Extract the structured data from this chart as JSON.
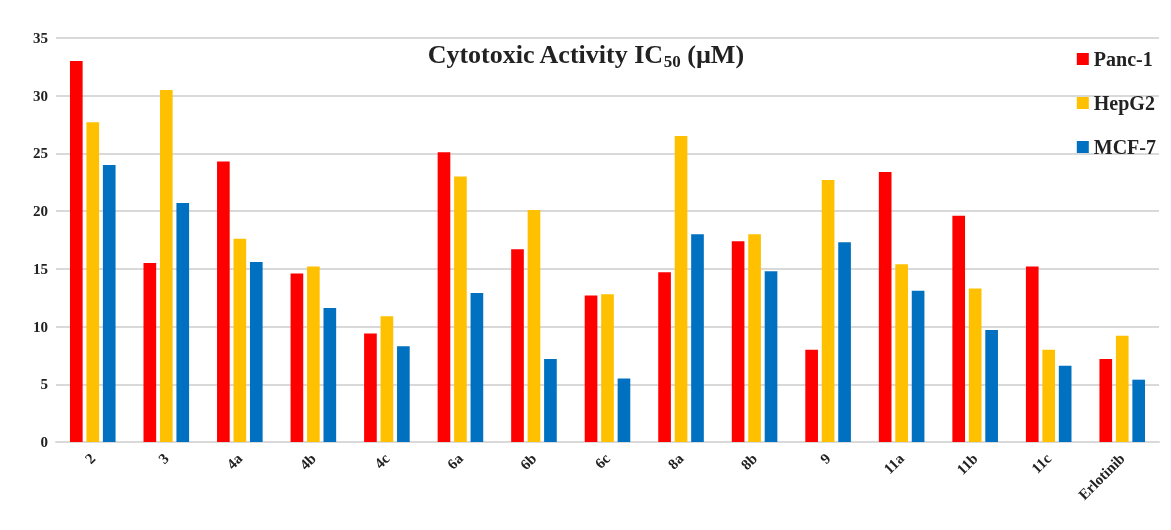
{
  "chart_data": {
    "type": "bar",
    "title": "Cytotoxic Activity IC$_{50}$ (µM)",
    "categories": [
      "2",
      "3",
      "4a",
      "4b",
      "4c",
      "6a",
      "6b",
      "6c",
      "8a",
      "8b",
      "9",
      "11a",
      "11b",
      "11c",
      "Erlotinib"
    ],
    "series": [
      {
        "name": "Panc-1",
        "color": "#ff0000",
        "values": [
          33.0,
          15.5,
          24.3,
          14.6,
          9.4,
          25.1,
          16.7,
          12.7,
          14.7,
          17.4,
          8.0,
          23.4,
          19.6,
          15.2,
          7.2
        ]
      },
      {
        "name": "HepG2",
        "color": "#ffc000",
        "values": [
          27.7,
          30.5,
          17.6,
          15.2,
          10.9,
          23.0,
          20.1,
          12.8,
          26.5,
          18.0,
          22.7,
          15.4,
          13.3,
          8.0,
          9.2
        ]
      },
      {
        "name": "MCF-7",
        "color": "#0070c0",
        "values": [
          24.0,
          20.7,
          15.6,
          11.6,
          8.3,
          12.9,
          7.2,
          5.5,
          18.0,
          14.8,
          17.3,
          13.1,
          9.7,
          6.6,
          5.4
        ]
      }
    ],
    "ylim": [
      0,
      35
    ],
    "yticks": [
      0,
      5,
      10,
      15,
      20,
      25,
      30,
      35
    ],
    "grid": "y",
    "legend": "top right"
  }
}
